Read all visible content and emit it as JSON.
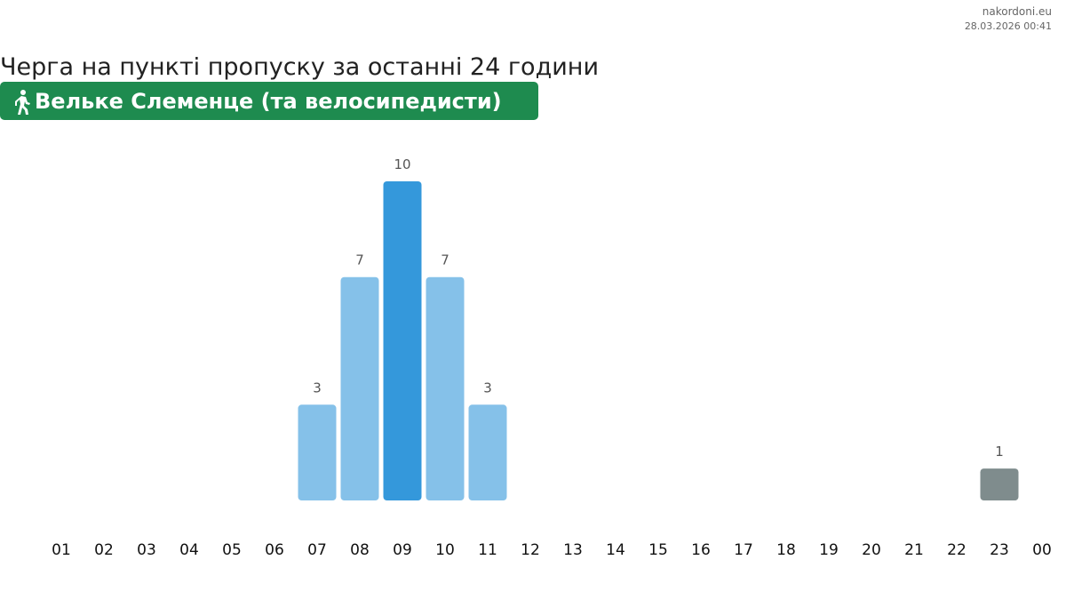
{
  "chart_data": {
    "type": "bar",
    "site": "nakordoni.eu",
    "timestamp": "28.03.2026 00:41",
    "title": "Черга на пункті пропуску за останні 24 години",
    "subtitle": "Вельке Слеменце (та велосипедисти)",
    "categories": [
      "01",
      "02",
      "03",
      "04",
      "05",
      "06",
      "07",
      "08",
      "09",
      "10",
      "11",
      "12",
      "13",
      "14",
      "15",
      "16",
      "17",
      "18",
      "19",
      "20",
      "21",
      "22",
      "23",
      "00"
    ],
    "values": [
      null,
      null,
      null,
      null,
      null,
      null,
      3,
      7,
      10,
      7,
      3,
      null,
      null,
      null,
      null,
      null,
      null,
      null,
      null,
      null,
      null,
      null,
      1,
      null
    ],
    "colors": [
      null,
      null,
      null,
      null,
      null,
      null,
      "#85c1e9",
      "#85c1e9",
      "#3498db",
      "#85c1e9",
      "#85c1e9",
      null,
      null,
      null,
      null,
      null,
      null,
      null,
      null,
      null,
      null,
      null,
      "#7f8c8d",
      null
    ],
    "ylim": [
      0,
      10
    ],
    "badge_color": "#1e8b4f"
  }
}
